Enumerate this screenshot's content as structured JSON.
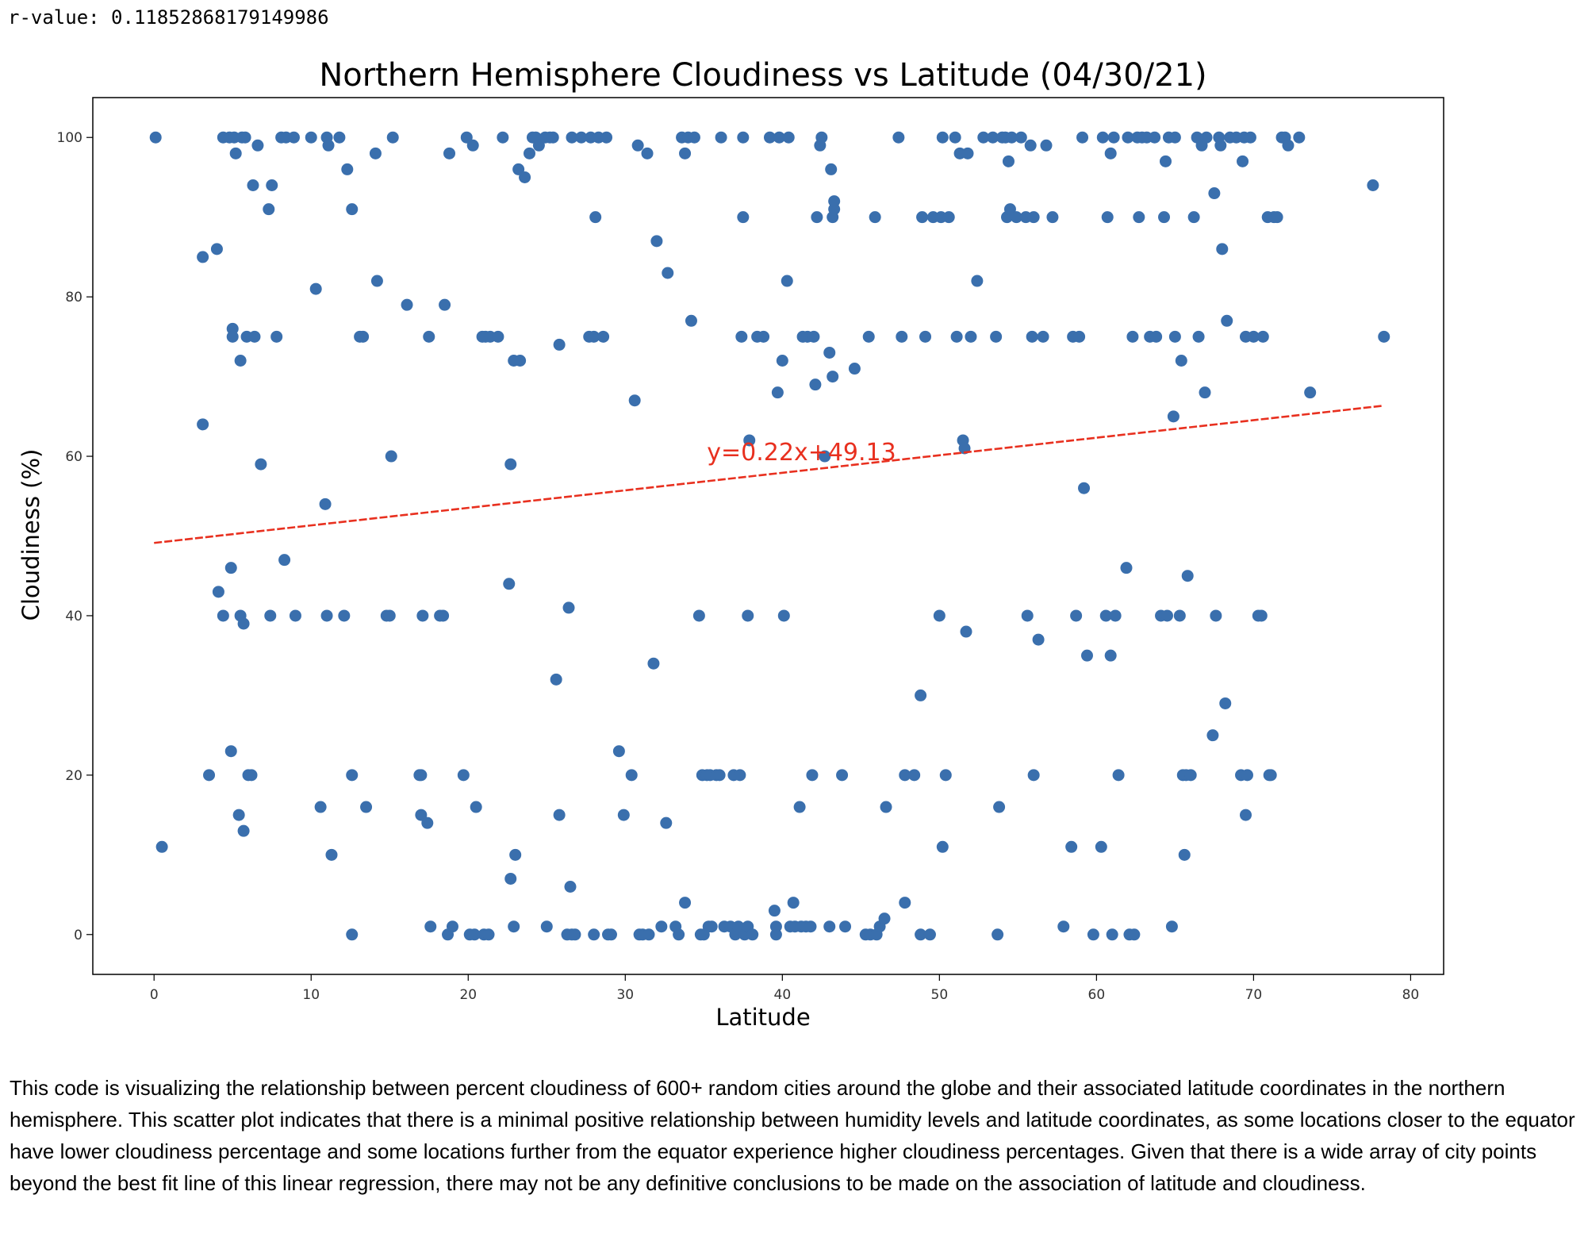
{
  "output_text": "r-value: 0.11852868179149986",
  "description": "This code is visualizing the relationship between percent cloudiness of 600+ random cities around the globe and their associated latitude coordinates in the northern hemisphere. This scatter plot indicates that there is a minimal positive relationship between humidity levels and latitude coordinates, as some locations closer to the equator have lower cloudiness percentage and some locations further from the equator experience higher cloudiness percentages. Given that there is a wide array of city points beyond the best fit line of this linear regression, there may not be any definitive conclusions to be made on the association of latitude and cloudiness.",
  "chart_data": {
    "type": "scatter",
    "title": "Northern Hemisphere Cloudiness vs Latitude (04/30/21)",
    "xlabel": "Latitude",
    "ylabel": "Cloudiness (%)",
    "xlim": [
      -3.9,
      82.1
    ],
    "ylim": [
      -5,
      105
    ],
    "xticks": [
      0,
      10,
      20,
      30,
      40,
      50,
      60,
      70,
      80
    ],
    "yticks": [
      0,
      20,
      40,
      60,
      80,
      100
    ],
    "grid": false,
    "point_color": "#3a6fad",
    "line_color": "#e8301f",
    "regression": {
      "label": "y=0.22x+49.13",
      "slope": 0.22,
      "intercept": 49.13,
      "x_range": [
        0,
        78.2
      ],
      "label_at": [
        35.2,
        59.5
      ]
    },
    "points": [
      [
        0.1,
        100
      ],
      [
        0.5,
        11
      ],
      [
        3.1,
        85
      ],
      [
        3.1,
        64
      ],
      [
        3.5,
        20
      ],
      [
        4.0,
        86
      ],
      [
        4.1,
        43
      ],
      [
        4.4,
        40
      ],
      [
        4.4,
        100
      ],
      [
        4.8,
        100
      ],
      [
        4.9,
        46
      ],
      [
        4.9,
        23
      ],
      [
        5.0,
        76
      ],
      [
        5.0,
        75
      ],
      [
        5.1,
        100
      ],
      [
        5.2,
        98
      ],
      [
        5.4,
        15
      ],
      [
        5.5,
        40
      ],
      [
        5.5,
        72
      ],
      [
        5.6,
        100
      ],
      [
        5.7,
        39
      ],
      [
        5.7,
        13
      ],
      [
        5.8,
        100
      ],
      [
        5.9,
        75
      ],
      [
        6.0,
        20
      ],
      [
        6.2,
        20
      ],
      [
        6.3,
        94
      ],
      [
        6.4,
        75
      ],
      [
        6.6,
        99
      ],
      [
        6.8,
        59
      ],
      [
        7.3,
        91
      ],
      [
        7.4,
        40
      ],
      [
        7.5,
        94
      ],
      [
        7.8,
        75
      ],
      [
        8.1,
        100
      ],
      [
        8.3,
        47
      ],
      [
        8.4,
        100
      ],
      [
        8.9,
        100
      ],
      [
        9.0,
        40
      ],
      [
        10.0,
        100
      ],
      [
        10.3,
        81
      ],
      [
        10.6,
        16
      ],
      [
        10.9,
        54
      ],
      [
        11.0,
        100
      ],
      [
        11.0,
        40
      ],
      [
        11.1,
        99
      ],
      [
        11.3,
        10
      ],
      [
        11.8,
        100
      ],
      [
        12.1,
        40
      ],
      [
        12.3,
        96
      ],
      [
        12.6,
        20
      ],
      [
        12.6,
        91
      ],
      [
        12.6,
        0
      ],
      [
        13.1,
        75
      ],
      [
        13.3,
        75
      ],
      [
        13.5,
        16
      ],
      [
        14.1,
        98
      ],
      [
        14.2,
        82
      ],
      [
        14.8,
        40
      ],
      [
        15.0,
        40
      ],
      [
        15.1,
        60
      ],
      [
        15.2,
        100
      ],
      [
        16.1,
        79
      ],
      [
        16.9,
        20
      ],
      [
        17.0,
        20
      ],
      [
        17.0,
        15
      ],
      [
        17.1,
        40
      ],
      [
        17.4,
        14
      ],
      [
        17.5,
        75
      ],
      [
        17.6,
        1
      ],
      [
        18.2,
        40
      ],
      [
        18.4,
        40
      ],
      [
        18.5,
        79
      ],
      [
        18.7,
        0
      ],
      [
        18.8,
        98
      ],
      [
        19.0,
        1
      ],
      [
        19.7,
        20
      ],
      [
        19.9,
        100
      ],
      [
        20.1,
        0
      ],
      [
        20.3,
        99
      ],
      [
        20.4,
        0
      ],
      [
        20.5,
        16
      ],
      [
        20.9,
        75
      ],
      [
        21.0,
        0
      ],
      [
        21.1,
        75
      ],
      [
        21.3,
        0
      ],
      [
        21.4,
        75
      ],
      [
        21.9,
        75
      ],
      [
        22.2,
        100
      ],
      [
        22.6,
        44
      ],
      [
        22.7,
        7
      ],
      [
        22.7,
        59
      ],
      [
        22.9,
        72
      ],
      [
        22.9,
        1
      ],
      [
        23.0,
        10
      ],
      [
        23.2,
        96
      ],
      [
        23.3,
        72
      ],
      [
        23.6,
        95
      ],
      [
        23.9,
        98
      ],
      [
        24.1,
        100
      ],
      [
        24.3,
        100
      ],
      [
        24.5,
        99
      ],
      [
        24.9,
        100
      ],
      [
        25.0,
        1
      ],
      [
        25.2,
        100
      ],
      [
        25.4,
        100
      ],
      [
        25.6,
        32
      ],
      [
        25.8,
        15
      ],
      [
        25.8,
        74
      ],
      [
        26.3,
        0
      ],
      [
        26.4,
        41
      ],
      [
        26.5,
        6
      ],
      [
        26.6,
        0
      ],
      [
        26.6,
        100
      ],
      [
        26.8,
        0
      ],
      [
        27.2,
        100
      ],
      [
        27.7,
        75
      ],
      [
        27.8,
        100
      ],
      [
        28.0,
        0
      ],
      [
        28.0,
        75
      ],
      [
        28.1,
        90
      ],
      [
        28.3,
        100
      ],
      [
        28.6,
        75
      ],
      [
        28.8,
        100
      ],
      [
        28.9,
        0
      ],
      [
        29.1,
        0
      ],
      [
        29.6,
        23
      ],
      [
        29.9,
        15
      ],
      [
        30.4,
        20
      ],
      [
        30.6,
        67
      ],
      [
        30.8,
        99
      ],
      [
        30.9,
        0
      ],
      [
        31.1,
        0
      ],
      [
        31.4,
        98
      ],
      [
        31.5,
        0
      ],
      [
        31.8,
        34
      ],
      [
        32.0,
        87
      ],
      [
        32.3,
        1
      ],
      [
        32.6,
        14
      ],
      [
        32.7,
        83
      ],
      [
        33.2,
        1
      ],
      [
        33.4,
        0
      ],
      [
        33.6,
        100
      ],
      [
        33.8,
        4
      ],
      [
        33.8,
        98
      ],
      [
        34.0,
        100
      ],
      [
        34.2,
        77
      ],
      [
        34.4,
        100
      ],
      [
        34.7,
        40
      ],
      [
        34.8,
        0
      ],
      [
        34.9,
        20
      ],
      [
        35.0,
        0
      ],
      [
        35.2,
        20
      ],
      [
        35.3,
        1
      ],
      [
        35.4,
        20
      ],
      [
        35.5,
        1
      ],
      [
        35.8,
        20
      ],
      [
        36.0,
        20
      ],
      [
        36.1,
        100
      ],
      [
        36.3,
        1
      ],
      [
        36.7,
        1
      ],
      [
        36.9,
        20
      ],
      [
        37.0,
        0
      ],
      [
        37.2,
        1
      ],
      [
        37.3,
        20
      ],
      [
        37.4,
        75
      ],
      [
        37.5,
        90
      ],
      [
        37.5,
        100
      ],
      [
        37.6,
        0
      ],
      [
        37.8,
        40
      ],
      [
        37.8,
        1
      ],
      [
        37.9,
        62
      ],
      [
        38.1,
        0
      ],
      [
        38.4,
        75
      ],
      [
        38.8,
        75
      ],
      [
        39.2,
        100
      ],
      [
        39.5,
        3
      ],
      [
        39.6,
        0
      ],
      [
        39.6,
        1
      ],
      [
        39.7,
        68
      ],
      [
        39.8,
        100
      ],
      [
        40.0,
        72
      ],
      [
        40.1,
        40
      ],
      [
        40.3,
        82
      ],
      [
        40.4,
        100
      ],
      [
        40.5,
        1
      ],
      [
        40.7,
        4
      ],
      [
        40.8,
        1
      ],
      [
        41.1,
        16
      ],
      [
        41.2,
        1
      ],
      [
        41.3,
        75
      ],
      [
        41.5,
        1
      ],
      [
        41.6,
        75
      ],
      [
        41.8,
        1
      ],
      [
        41.9,
        20
      ],
      [
        42.0,
        75
      ],
      [
        42.1,
        69
      ],
      [
        42.2,
        90
      ],
      [
        42.4,
        99
      ],
      [
        42.5,
        100
      ],
      [
        42.7,
        60
      ],
      [
        43.0,
        73
      ],
      [
        43.0,
        1
      ],
      [
        43.1,
        96
      ],
      [
        43.2,
        90
      ],
      [
        43.2,
        70
      ],
      [
        43.3,
        91
      ],
      [
        43.3,
        92
      ],
      [
        43.8,
        20
      ],
      [
        44.0,
        1
      ],
      [
        44.6,
        71
      ],
      [
        45.3,
        0
      ],
      [
        45.5,
        75
      ],
      [
        45.6,
        0
      ],
      [
        45.9,
        90
      ],
      [
        46.0,
        0
      ],
      [
        46.2,
        1
      ],
      [
        46.5,
        2
      ],
      [
        46.6,
        16
      ],
      [
        47.4,
        100
      ],
      [
        47.6,
        75
      ],
      [
        47.8,
        4
      ],
      [
        47.8,
        20
      ],
      [
        48.4,
        20
      ],
      [
        48.8,
        0
      ],
      [
        48.8,
        30
      ],
      [
        48.9,
        90
      ],
      [
        49.1,
        75
      ],
      [
        49.4,
        0
      ],
      [
        49.6,
        90
      ],
      [
        50.1,
        90
      ],
      [
        50.4,
        20
      ],
      [
        50.0,
        40
      ],
      [
        50.2,
        11
      ],
      [
        50.2,
        100
      ],
      [
        50.6,
        90
      ],
      [
        51.0,
        100
      ],
      [
        51.1,
        75
      ],
      [
        51.3,
        98
      ],
      [
        51.5,
        62
      ],
      [
        51.6,
        61
      ],
      [
        51.7,
        38
      ],
      [
        51.8,
        98
      ],
      [
        52.0,
        75
      ],
      [
        52.4,
        82
      ],
      [
        52.8,
        100
      ],
      [
        53.4,
        100
      ],
      [
        53.6,
        75
      ],
      [
        53.7,
        0
      ],
      [
        53.8,
        16
      ],
      [
        54.0,
        100
      ],
      [
        54.2,
        100
      ],
      [
        54.3,
        90
      ],
      [
        54.4,
        97
      ],
      [
        54.5,
        91
      ],
      [
        54.6,
        100
      ],
      [
        54.9,
        90
      ],
      [
        55.2,
        100
      ],
      [
        55.5,
        90
      ],
      [
        55.6,
        40
      ],
      [
        55.8,
        99
      ],
      [
        55.9,
        75
      ],
      [
        56.0,
        90
      ],
      [
        56.0,
        20
      ],
      [
        56.3,
        37
      ],
      [
        56.6,
        75
      ],
      [
        56.8,
        99
      ],
      [
        57.2,
        90
      ],
      [
        57.9,
        1
      ],
      [
        58.4,
        11
      ],
      [
        58.5,
        75
      ],
      [
        58.7,
        40
      ],
      [
        58.9,
        75
      ],
      [
        59.1,
        100
      ],
      [
        59.2,
        56
      ],
      [
        59.4,
        35
      ],
      [
        59.8,
        0
      ],
      [
        60.3,
        11
      ],
      [
        60.4,
        100
      ],
      [
        60.6,
        40
      ],
      [
        60.7,
        90
      ],
      [
        60.9,
        98
      ],
      [
        60.9,
        35
      ],
      [
        61.0,
        0
      ],
      [
        61.1,
        100
      ],
      [
        61.2,
        40
      ],
      [
        61.4,
        20
      ],
      [
        61.9,
        46
      ],
      [
        62.0,
        100
      ],
      [
        62.1,
        0
      ],
      [
        62.3,
        75
      ],
      [
        62.4,
        0
      ],
      [
        62.6,
        100
      ],
      [
        62.7,
        90
      ],
      [
        62.9,
        100
      ],
      [
        63.2,
        100
      ],
      [
        63.4,
        75
      ],
      [
        63.7,
        100
      ],
      [
        63.8,
        75
      ],
      [
        64.1,
        40
      ],
      [
        64.3,
        90
      ],
      [
        64.4,
        97
      ],
      [
        64.5,
        40
      ],
      [
        64.6,
        100
      ],
      [
        64.8,
        1
      ],
      [
        64.9,
        65
      ],
      [
        65.0,
        75
      ],
      [
        65.0,
        100
      ],
      [
        65.3,
        40
      ],
      [
        65.4,
        72
      ],
      [
        65.5,
        20
      ],
      [
        65.6,
        10
      ],
      [
        65.7,
        20
      ],
      [
        65.8,
        45
      ],
      [
        66.0,
        20
      ],
      [
        66.2,
        90
      ],
      [
        66.4,
        100
      ],
      [
        66.5,
        75
      ],
      [
        66.7,
        99
      ],
      [
        66.9,
        68
      ],
      [
        67.0,
        100
      ],
      [
        67.4,
        25
      ],
      [
        67.5,
        93
      ],
      [
        67.6,
        40
      ],
      [
        67.8,
        100
      ],
      [
        67.9,
        99
      ],
      [
        68.0,
        86
      ],
      [
        68.2,
        29
      ],
      [
        68.3,
        77
      ],
      [
        68.5,
        100
      ],
      [
        68.9,
        100
      ],
      [
        69.2,
        20
      ],
      [
        69.3,
        97
      ],
      [
        69.4,
        100
      ],
      [
        69.5,
        15
      ],
      [
        69.5,
        75
      ],
      [
        69.6,
        20
      ],
      [
        69.8,
        100
      ],
      [
        70.0,
        75
      ],
      [
        70.3,
        40
      ],
      [
        70.5,
        40
      ],
      [
        70.6,
        75
      ],
      [
        70.9,
        90
      ],
      [
        71.0,
        20
      ],
      [
        71.1,
        20
      ],
      [
        71.3,
        90
      ],
      [
        71.5,
        90
      ],
      [
        71.8,
        100
      ],
      [
        72.0,
        100
      ],
      [
        72.2,
        99
      ],
      [
        72.9,
        100
      ],
      [
        73.6,
        68
      ],
      [
        77.6,
        94
      ],
      [
        78.3,
        75
      ]
    ]
  }
}
